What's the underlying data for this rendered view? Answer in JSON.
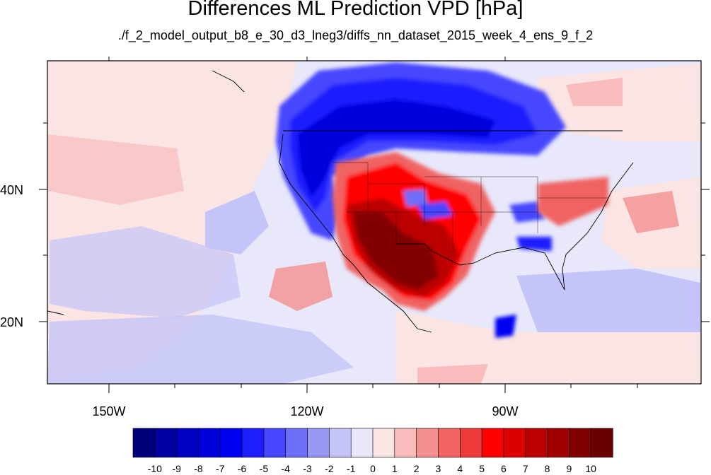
{
  "title": "Differences ML Prediction VPD [hPa]",
  "subtitle": "./f_2_model_output_b8_e_30_d3_lneg3/diffs_nn_dataset_2015_week_4_ens_9_f_2",
  "map": {
    "lon_range": [
      -160,
      -61
    ],
    "lat_range": [
      10,
      59
    ],
    "lon_ticks": [
      {
        "value": -150,
        "label": "150W"
      },
      {
        "value": -120,
        "label": "120W"
      },
      {
        "value": -90,
        "label": "90W"
      }
    ],
    "lat_ticks": [
      {
        "value": 40,
        "label": "40N"
      },
      {
        "value": 20,
        "label": "20N"
      }
    ]
  },
  "colorbar": {
    "labels": [
      "-10",
      "-9",
      "-8",
      "-7",
      "-6",
      "-5",
      "-4",
      "-3",
      "-2",
      "-1",
      "0",
      "1",
      "2",
      "3",
      "4",
      "5",
      "6",
      "7",
      "8",
      "9",
      "10"
    ],
    "colors": [
      "#00007c",
      "#0000a0",
      "#0000c0",
      "#0000dd",
      "#0000f4",
      "#1e1eff",
      "#4646ff",
      "#6e6ef8",
      "#9898f4",
      "#c4c4f8",
      "#e8e8fa",
      "#fae4e4",
      "#f8bcbc",
      "#f49090",
      "#f06464",
      "#ee3a3a",
      "#ff0000",
      "#dc0000",
      "#bc0000",
      "#a00000",
      "#820000",
      "#6a0000"
    ]
  }
}
